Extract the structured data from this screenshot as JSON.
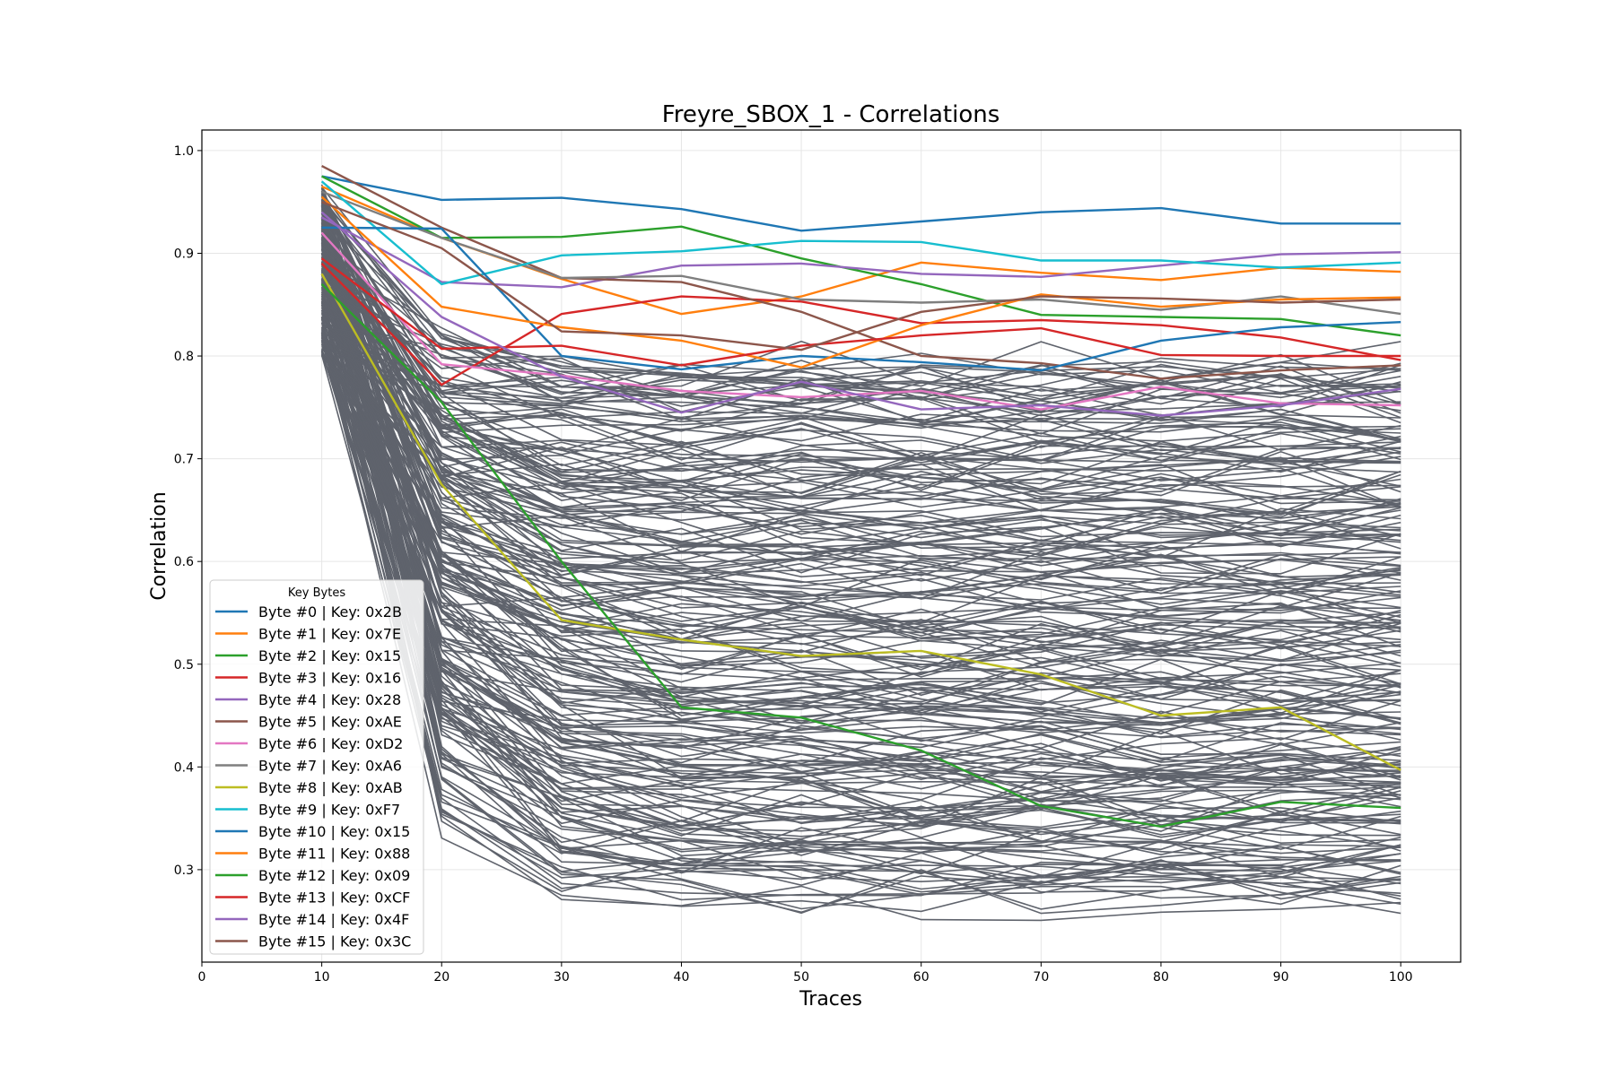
{
  "chart_data": {
    "type": "line",
    "title": "Freyre_SBOX_1 - Correlations",
    "xlabel": "Traces",
    "ylabel": "Correlation",
    "xlim": [
      0,
      105
    ],
    "ylim": [
      0.21,
      1.02
    ],
    "xticks": [
      0,
      10,
      20,
      30,
      40,
      50,
      60,
      70,
      80,
      90,
      100
    ],
    "yticks": [
      0.3,
      0.4,
      0.5,
      0.6,
      0.7,
      0.8,
      0.9,
      1.0
    ],
    "ytick_labels": [
      "0.3",
      "0.4",
      "0.5",
      "0.6",
      "0.7",
      "0.8",
      "0.9",
      "1.0"
    ],
    "grid": true,
    "legend_title": "Key Bytes",
    "legend_position": "lower-left",
    "x": [
      10,
      20,
      30,
      40,
      50,
      60,
      70,
      80,
      90,
      100
    ],
    "background_color": "#5f636c",
    "background_count": 240,
    "series": [
      {
        "name": "Byte #0 | Key: 0x2B",
        "color": "#1f77b4",
        "values": [
          0.975,
          0.952,
          0.954,
          0.943,
          0.922,
          0.931,
          0.94,
          0.944,
          0.929,
          0.929
        ]
      },
      {
        "name": "Byte #1 | Key: 0x7E",
        "color": "#ff7f0e",
        "values": [
          0.965,
          0.915,
          0.875,
          0.841,
          0.858,
          0.891,
          0.881,
          0.874,
          0.886,
          0.882
        ]
      },
      {
        "name": "Byte #2 | Key: 0x15",
        "color": "#2ca02c",
        "values": [
          0.975,
          0.915,
          0.916,
          0.926,
          0.895,
          0.87,
          0.84,
          0.838,
          0.836,
          0.82
        ]
      },
      {
        "name": "Byte #3 | Key: 0x16",
        "color": "#d62728",
        "values": [
          0.89,
          0.772,
          0.841,
          0.858,
          0.853,
          0.832,
          0.835,
          0.83,
          0.818,
          0.796
        ]
      },
      {
        "name": "Byte #4 | Key: 0x28",
        "color": "#9467bd",
        "values": [
          0.935,
          0.872,
          0.867,
          0.888,
          0.89,
          0.88,
          0.877,
          0.888,
          0.899,
          0.901
        ]
      },
      {
        "name": "Byte #5 | Key: 0xAE",
        "color": "#8c564b",
        "values": [
          0.985,
          0.925,
          0.876,
          0.872,
          0.843,
          0.8,
          0.793,
          0.778,
          0.786,
          0.791
        ]
      },
      {
        "name": "Byte #6 | Key: 0xD2",
        "color": "#e377c2",
        "values": [
          0.92,
          0.792,
          0.781,
          0.766,
          0.76,
          0.766,
          0.748,
          0.77,
          0.754,
          0.752
        ]
      },
      {
        "name": "Byte #7 | Key: 0xA6",
        "color": "#7f7f7f",
        "values": [
          0.96,
          0.915,
          0.876,
          0.878,
          0.855,
          0.852,
          0.855,
          0.845,
          0.858,
          0.841
        ]
      },
      {
        "name": "Byte #8 | Key: 0xAB",
        "color": "#bcbd22",
        "values": [
          0.88,
          0.675,
          0.543,
          0.524,
          0.508,
          0.513,
          0.49,
          0.45,
          0.458,
          0.397
        ]
      },
      {
        "name": "Byte #9 | Key: 0xF7",
        "color": "#17becf",
        "values": [
          0.97,
          0.87,
          0.898,
          0.902,
          0.912,
          0.911,
          0.893,
          0.893,
          0.886,
          0.891
        ]
      },
      {
        "name": "Byte #10 | Key: 0x15",
        "color": "#1f77b4",
        "values": [
          0.925,
          0.924,
          0.8,
          0.787,
          0.8,
          0.794,
          0.786,
          0.815,
          0.828,
          0.833
        ]
      },
      {
        "name": "Byte #11 | Key: 0x88",
        "color": "#ff7f0e",
        "values": [
          0.955,
          0.848,
          0.828,
          0.815,
          0.789,
          0.83,
          0.86,
          0.848,
          0.855,
          0.857
        ]
      },
      {
        "name": "Byte #12 | Key: 0x09",
        "color": "#2ca02c",
        "values": [
          0.87,
          0.755,
          0.6,
          0.458,
          0.448,
          0.416,
          0.362,
          0.342,
          0.366,
          0.36
        ]
      },
      {
        "name": "Byte #13 | Key: 0xCF",
        "color": "#d62728",
        "values": [
          0.895,
          0.807,
          0.81,
          0.791,
          0.81,
          0.82,
          0.827,
          0.801,
          0.8,
          0.8
        ]
      },
      {
        "name": "Byte #14 | Key: 0x4F",
        "color": "#9467bd",
        "values": [
          0.94,
          0.838,
          0.78,
          0.745,
          0.775,
          0.748,
          0.752,
          0.742,
          0.752,
          0.768
        ]
      },
      {
        "name": "Byte #15 | Key: 0x3C",
        "color": "#8c564b",
        "values": [
          0.95,
          0.905,
          0.824,
          0.82,
          0.806,
          0.843,
          0.858,
          0.856,
          0.852,
          0.855
        ]
      }
    ]
  }
}
